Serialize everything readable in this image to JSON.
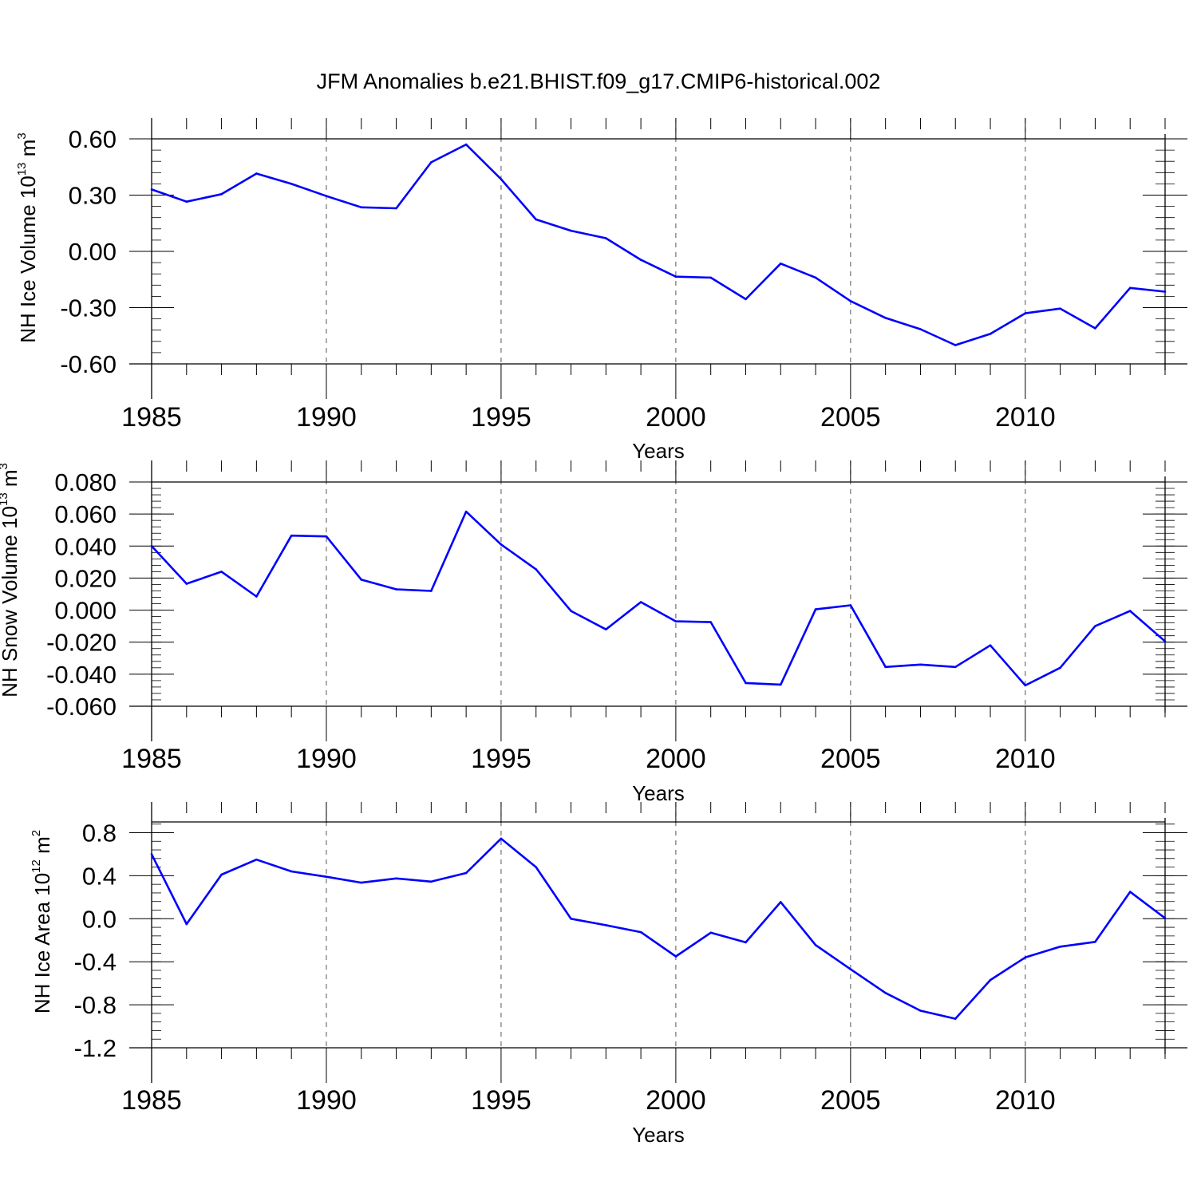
{
  "chart_data": {
    "type": "line",
    "title": "JFM Anomalies b.e21.BHIST.f09_g17.CMIP6-historical.002",
    "line_color": "#0000ff",
    "panels": [
      {
        "id": "ice-volume",
        "type": "line",
        "ylabel": {
          "prefix": "NH Ice Volume 10",
          "exp": "13",
          "unit": " m",
          "unit_exp": "3"
        },
        "xlabel": "Years",
        "xlim": [
          1985,
          2014
        ],
        "ylim": [
          -0.6,
          0.6
        ],
        "x_ticks": [
          1985,
          1990,
          1995,
          2000,
          2005,
          2010
        ],
        "x_tick_labels": [
          "1985",
          "1990",
          "1995",
          "2000",
          "2005",
          "2010"
        ],
        "y_ticks": [
          -0.6,
          -0.3,
          0.0,
          0.3,
          0.6
        ],
        "y_tick_labels": [
          "-0.60",
          "-0.30",
          "0.00",
          "0.30",
          "0.60"
        ],
        "y_minor_step": 0.06,
        "x": [
          1985,
          1986,
          1987,
          1988,
          1989,
          1990,
          1991,
          1992,
          1993,
          1994,
          1995,
          1996,
          1997,
          1998,
          1999,
          2000,
          2001,
          2002,
          2003,
          2004,
          2005,
          2006,
          2007,
          2008,
          2009,
          2010,
          2011,
          2012,
          2013,
          2014
        ],
        "values": [
          0.33,
          0.265,
          0.305,
          0.415,
          0.36,
          0.295,
          0.235,
          0.23,
          0.475,
          0.57,
          0.385,
          0.17,
          0.11,
          0.07,
          -0.045,
          -0.135,
          -0.14,
          -0.255,
          -0.065,
          -0.14,
          -0.265,
          -0.355,
          -0.415,
          -0.5,
          -0.44,
          -0.33,
          -0.305,
          -0.41,
          -0.195,
          -0.215
        ]
      },
      {
        "id": "snow-volume",
        "type": "line",
        "ylabel": {
          "prefix": "NH Snow Volume 10",
          "exp": "13",
          "unit": " m",
          "unit_exp": "3"
        },
        "xlabel": "Years",
        "xlim": [
          1985,
          2014
        ],
        "ylim": [
          -0.06,
          0.08
        ],
        "x_ticks": [
          1985,
          1990,
          1995,
          2000,
          2005,
          2010
        ],
        "x_tick_labels": [
          "1985",
          "1990",
          "1995",
          "2000",
          "2005",
          "2010"
        ],
        "y_ticks": [
          -0.06,
          -0.04,
          -0.02,
          0.0,
          0.02,
          0.04,
          0.06,
          0.08
        ],
        "y_tick_labels": [
          "-0.060",
          "-0.040",
          "-0.020",
          "0.000",
          "0.020",
          "0.040",
          "0.060",
          "0.080"
        ],
        "y_minor_step": 0.004,
        "x": [
          1985,
          1986,
          1987,
          1988,
          1989,
          1990,
          1991,
          1992,
          1993,
          1994,
          1995,
          1996,
          1997,
          1998,
          1999,
          2000,
          2001,
          2002,
          2003,
          2004,
          2005,
          2006,
          2007,
          2008,
          2009,
          2010,
          2011,
          2012,
          2013,
          2014
        ],
        "values": [
          0.04,
          0.0165,
          0.024,
          0.0085,
          0.0465,
          0.046,
          0.019,
          0.013,
          0.012,
          0.0615,
          0.041,
          0.0255,
          -0.0005,
          -0.012,
          0.005,
          -0.007,
          -0.0075,
          -0.0455,
          -0.0465,
          0.0005,
          0.003,
          -0.0355,
          -0.034,
          -0.0355,
          -0.022,
          -0.047,
          -0.036,
          -0.01,
          -0.0005,
          -0.0195
        ]
      },
      {
        "id": "ice-area",
        "type": "line",
        "ylabel": {
          "prefix": "NH Ice Area 10",
          "exp": "12",
          "unit": " m",
          "unit_exp": "2"
        },
        "xlabel": "Years",
        "xlim": [
          1985,
          2014
        ],
        "ylim": [
          -1.2,
          0.9
        ],
        "x_ticks": [
          1985,
          1990,
          1995,
          2000,
          2005,
          2010
        ],
        "x_tick_labels": [
          "1985",
          "1990",
          "1995",
          "2000",
          "2005",
          "2010"
        ],
        "y_ticks": [
          -1.2,
          -0.8,
          -0.4,
          0.0,
          0.4,
          0.8
        ],
        "y_tick_labels": [
          "-1.2",
          "-0.8",
          "-0.4",
          "0.0",
          "0.4",
          "0.8"
        ],
        "y_minor_step": 0.08,
        "x": [
          1985,
          1986,
          1987,
          1988,
          1989,
          1990,
          1991,
          1992,
          1993,
          1994,
          1995,
          1996,
          1997,
          1998,
          1999,
          2000,
          2001,
          2002,
          2003,
          2004,
          2005,
          2006,
          2007,
          2008,
          2009,
          2010,
          2011,
          2012,
          2013,
          2014
        ],
        "values": [
          0.6,
          -0.05,
          0.41,
          0.55,
          0.44,
          0.39,
          0.335,
          0.375,
          0.345,
          0.425,
          0.745,
          0.48,
          0.0,
          -0.06,
          -0.125,
          -0.35,
          -0.13,
          -0.22,
          0.155,
          -0.245,
          -0.47,
          -0.69,
          -0.855,
          -0.93,
          -0.57,
          -0.36,
          -0.26,
          -0.215,
          0.25,
          0.005
        ]
      }
    ]
  }
}
